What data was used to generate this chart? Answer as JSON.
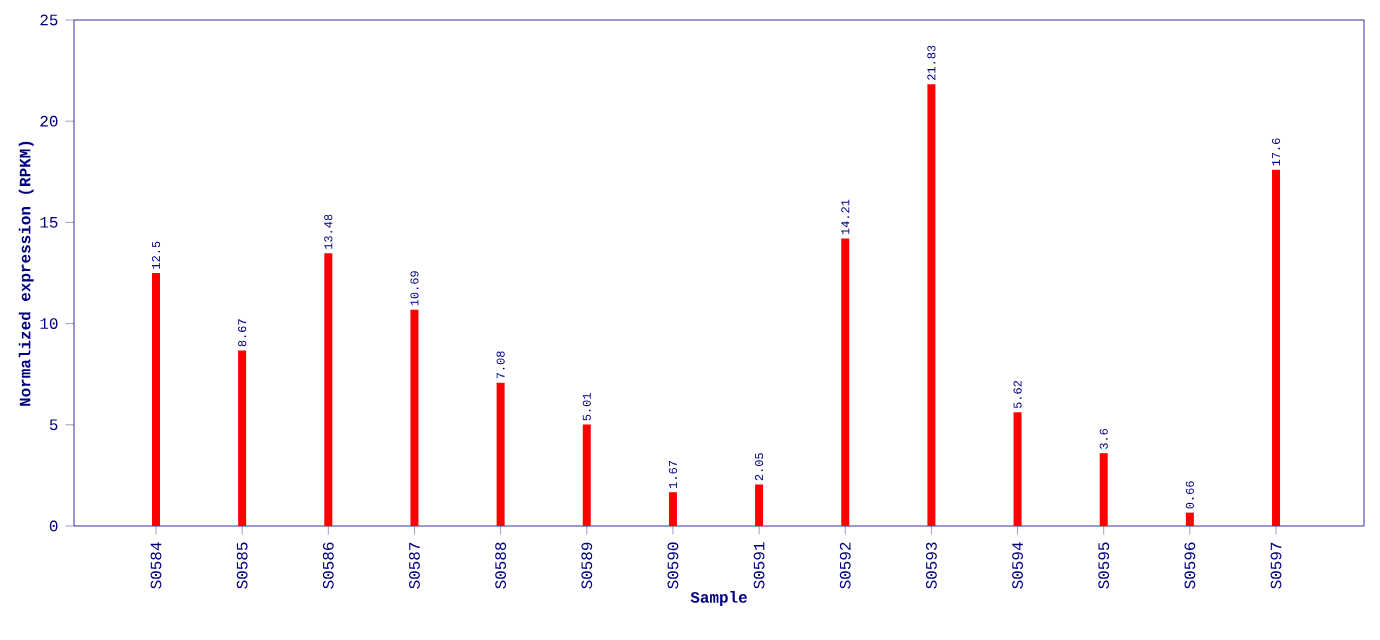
{
  "chart_data": {
    "type": "bar",
    "xlabel": "Sample",
    "ylabel": "Normalized expression (RPKM)",
    "categories": [
      "S0584",
      "S0585",
      "S0586",
      "S0587",
      "S0588",
      "S0589",
      "S0590",
      "S0591",
      "S0592",
      "S0593",
      "S0594",
      "S0595",
      "S0596",
      "S0597"
    ],
    "values": [
      12.5,
      8.67,
      13.48,
      10.69,
      7.08,
      5.01,
      1.67,
      2.05,
      14.21,
      21.83,
      5.62,
      3.6,
      0.66,
      17.6
    ],
    "color": "#ff0000",
    "ylim": [
      0,
      25
    ],
    "yticks": [
      0,
      5,
      10,
      15,
      20,
      25
    ],
    "data_labels": true
  }
}
